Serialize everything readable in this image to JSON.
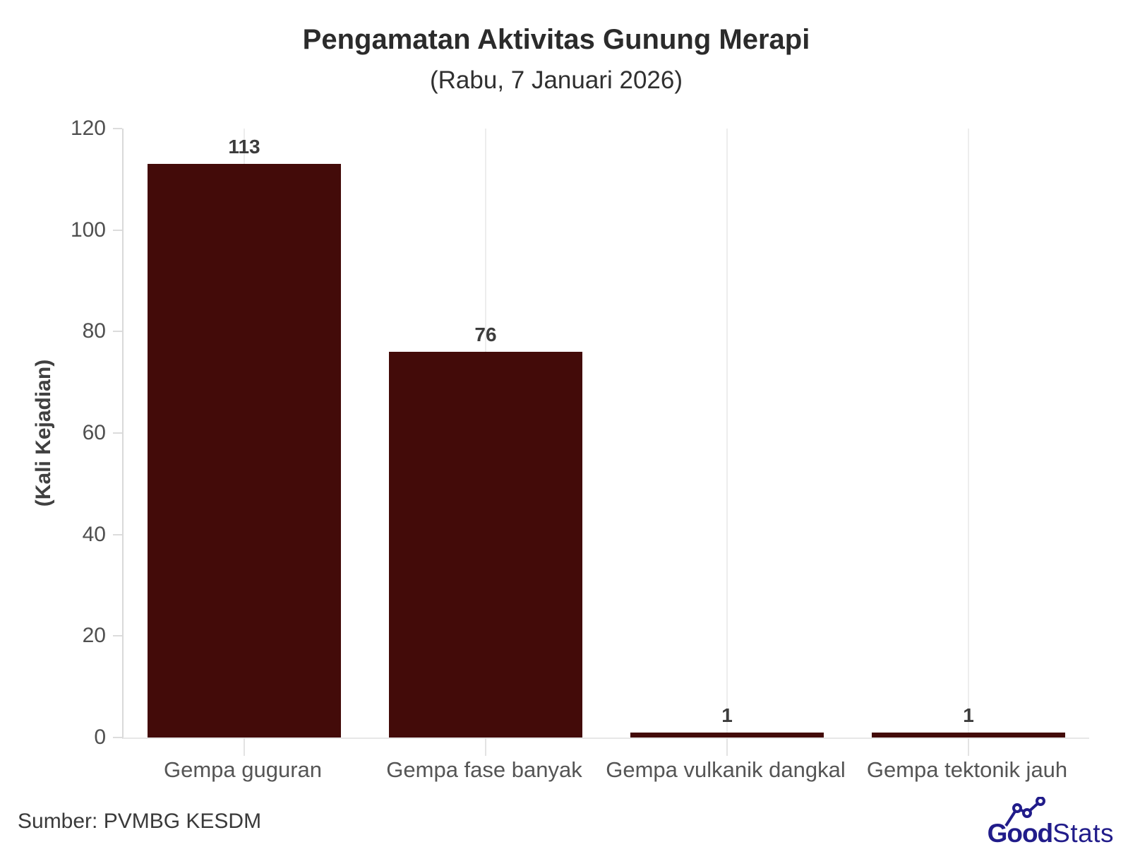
{
  "chart_data": {
    "type": "bar",
    "title": "Pengamatan Aktivitas Gunung Merapi",
    "subtitle": "(Rabu, 7 Januari 2026)",
    "ylabel": "(Kali Kejadian)",
    "xlabel": "",
    "categories": [
      "Gempa guguran",
      "Gempa fase banyak",
      "Gempa vulkanik dangkal",
      "Gempa tektonik jauh"
    ],
    "values": [
      113,
      76,
      1,
      1
    ],
    "ylim": [
      0,
      120
    ],
    "yticks": [
      0,
      20,
      40,
      60,
      80,
      100,
      120
    ],
    "bar_color": "#430b09",
    "grid": "vertical-category-gridlines",
    "legend": "none"
  },
  "footer": {
    "source": "Sumber: PVMBG KESDM",
    "brand": {
      "bold": "Good",
      "light": "Stats",
      "color": "#211c8a"
    }
  }
}
